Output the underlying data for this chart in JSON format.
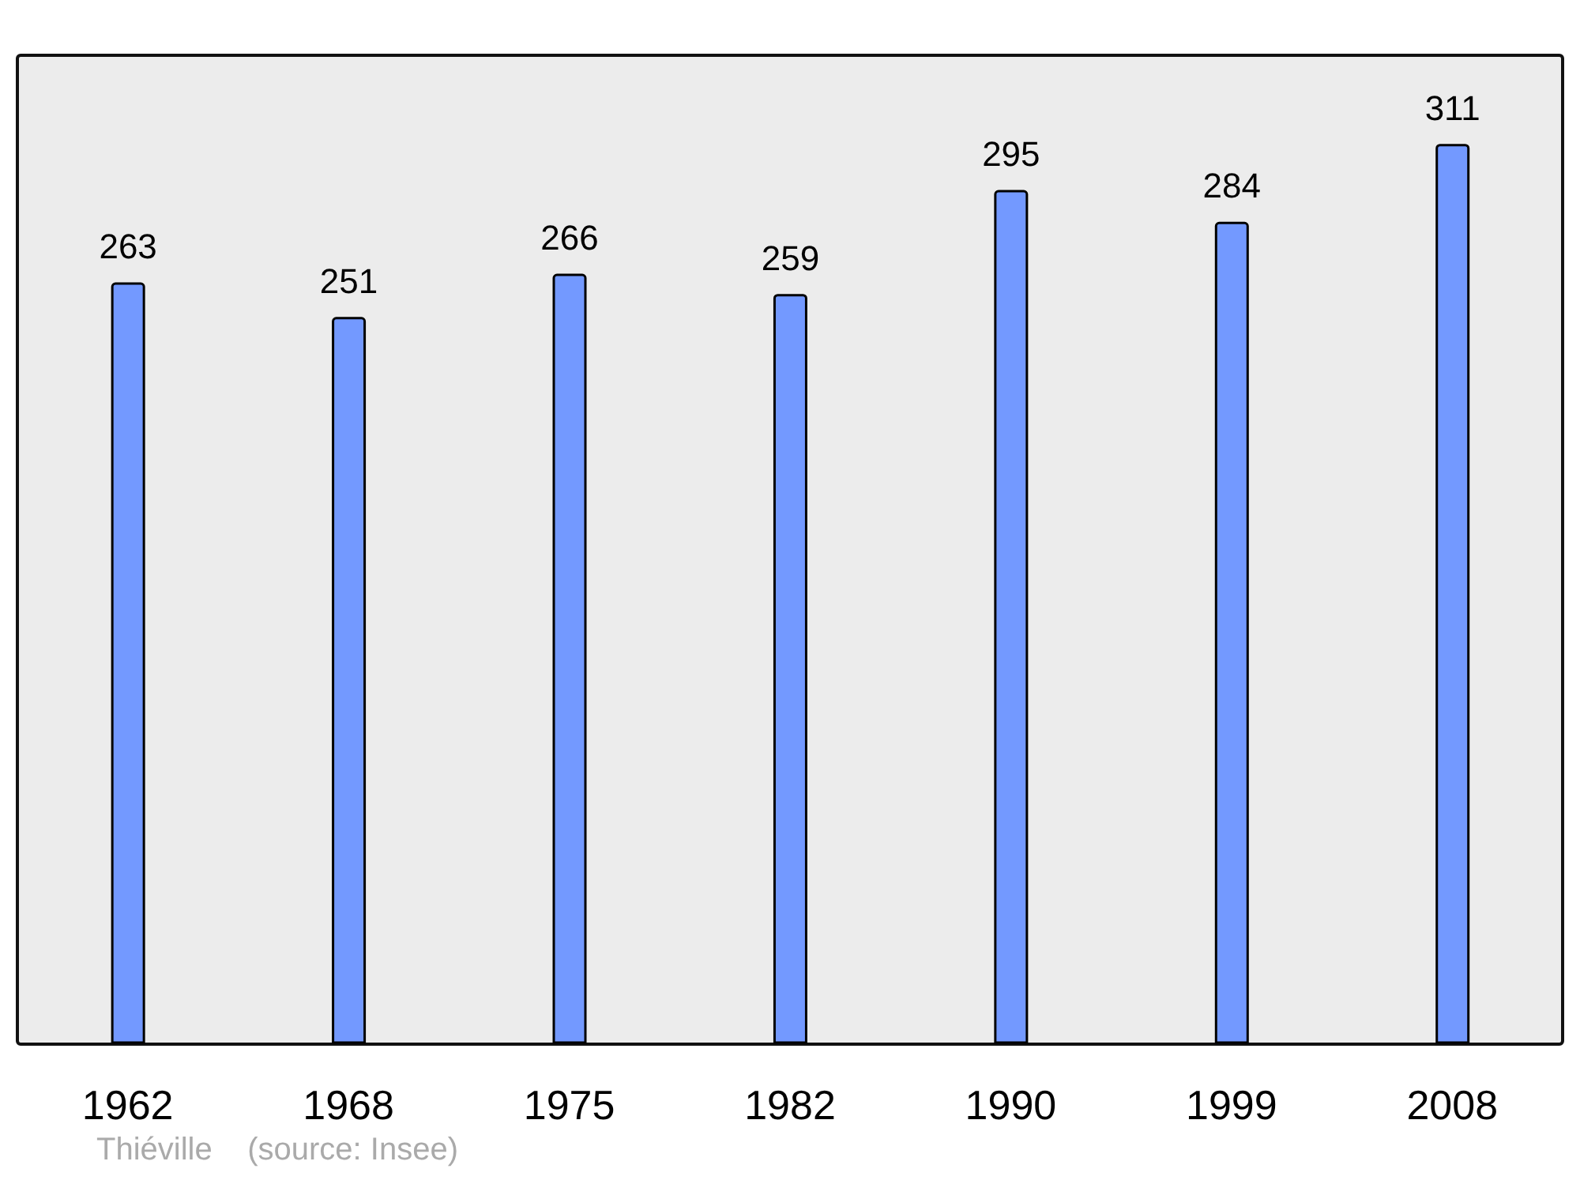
{
  "chart_data": {
    "type": "bar",
    "categories": [
      "1962",
      "1968",
      "1975",
      "1982",
      "1990",
      "1999",
      "2008"
    ],
    "values": [
      263,
      251,
      266,
      259,
      295,
      284,
      311
    ],
    "color": "#7399ff",
    "data_labels": true,
    "annotations": [
      "Thiéville    (source: Insee)"
    ]
  }
}
